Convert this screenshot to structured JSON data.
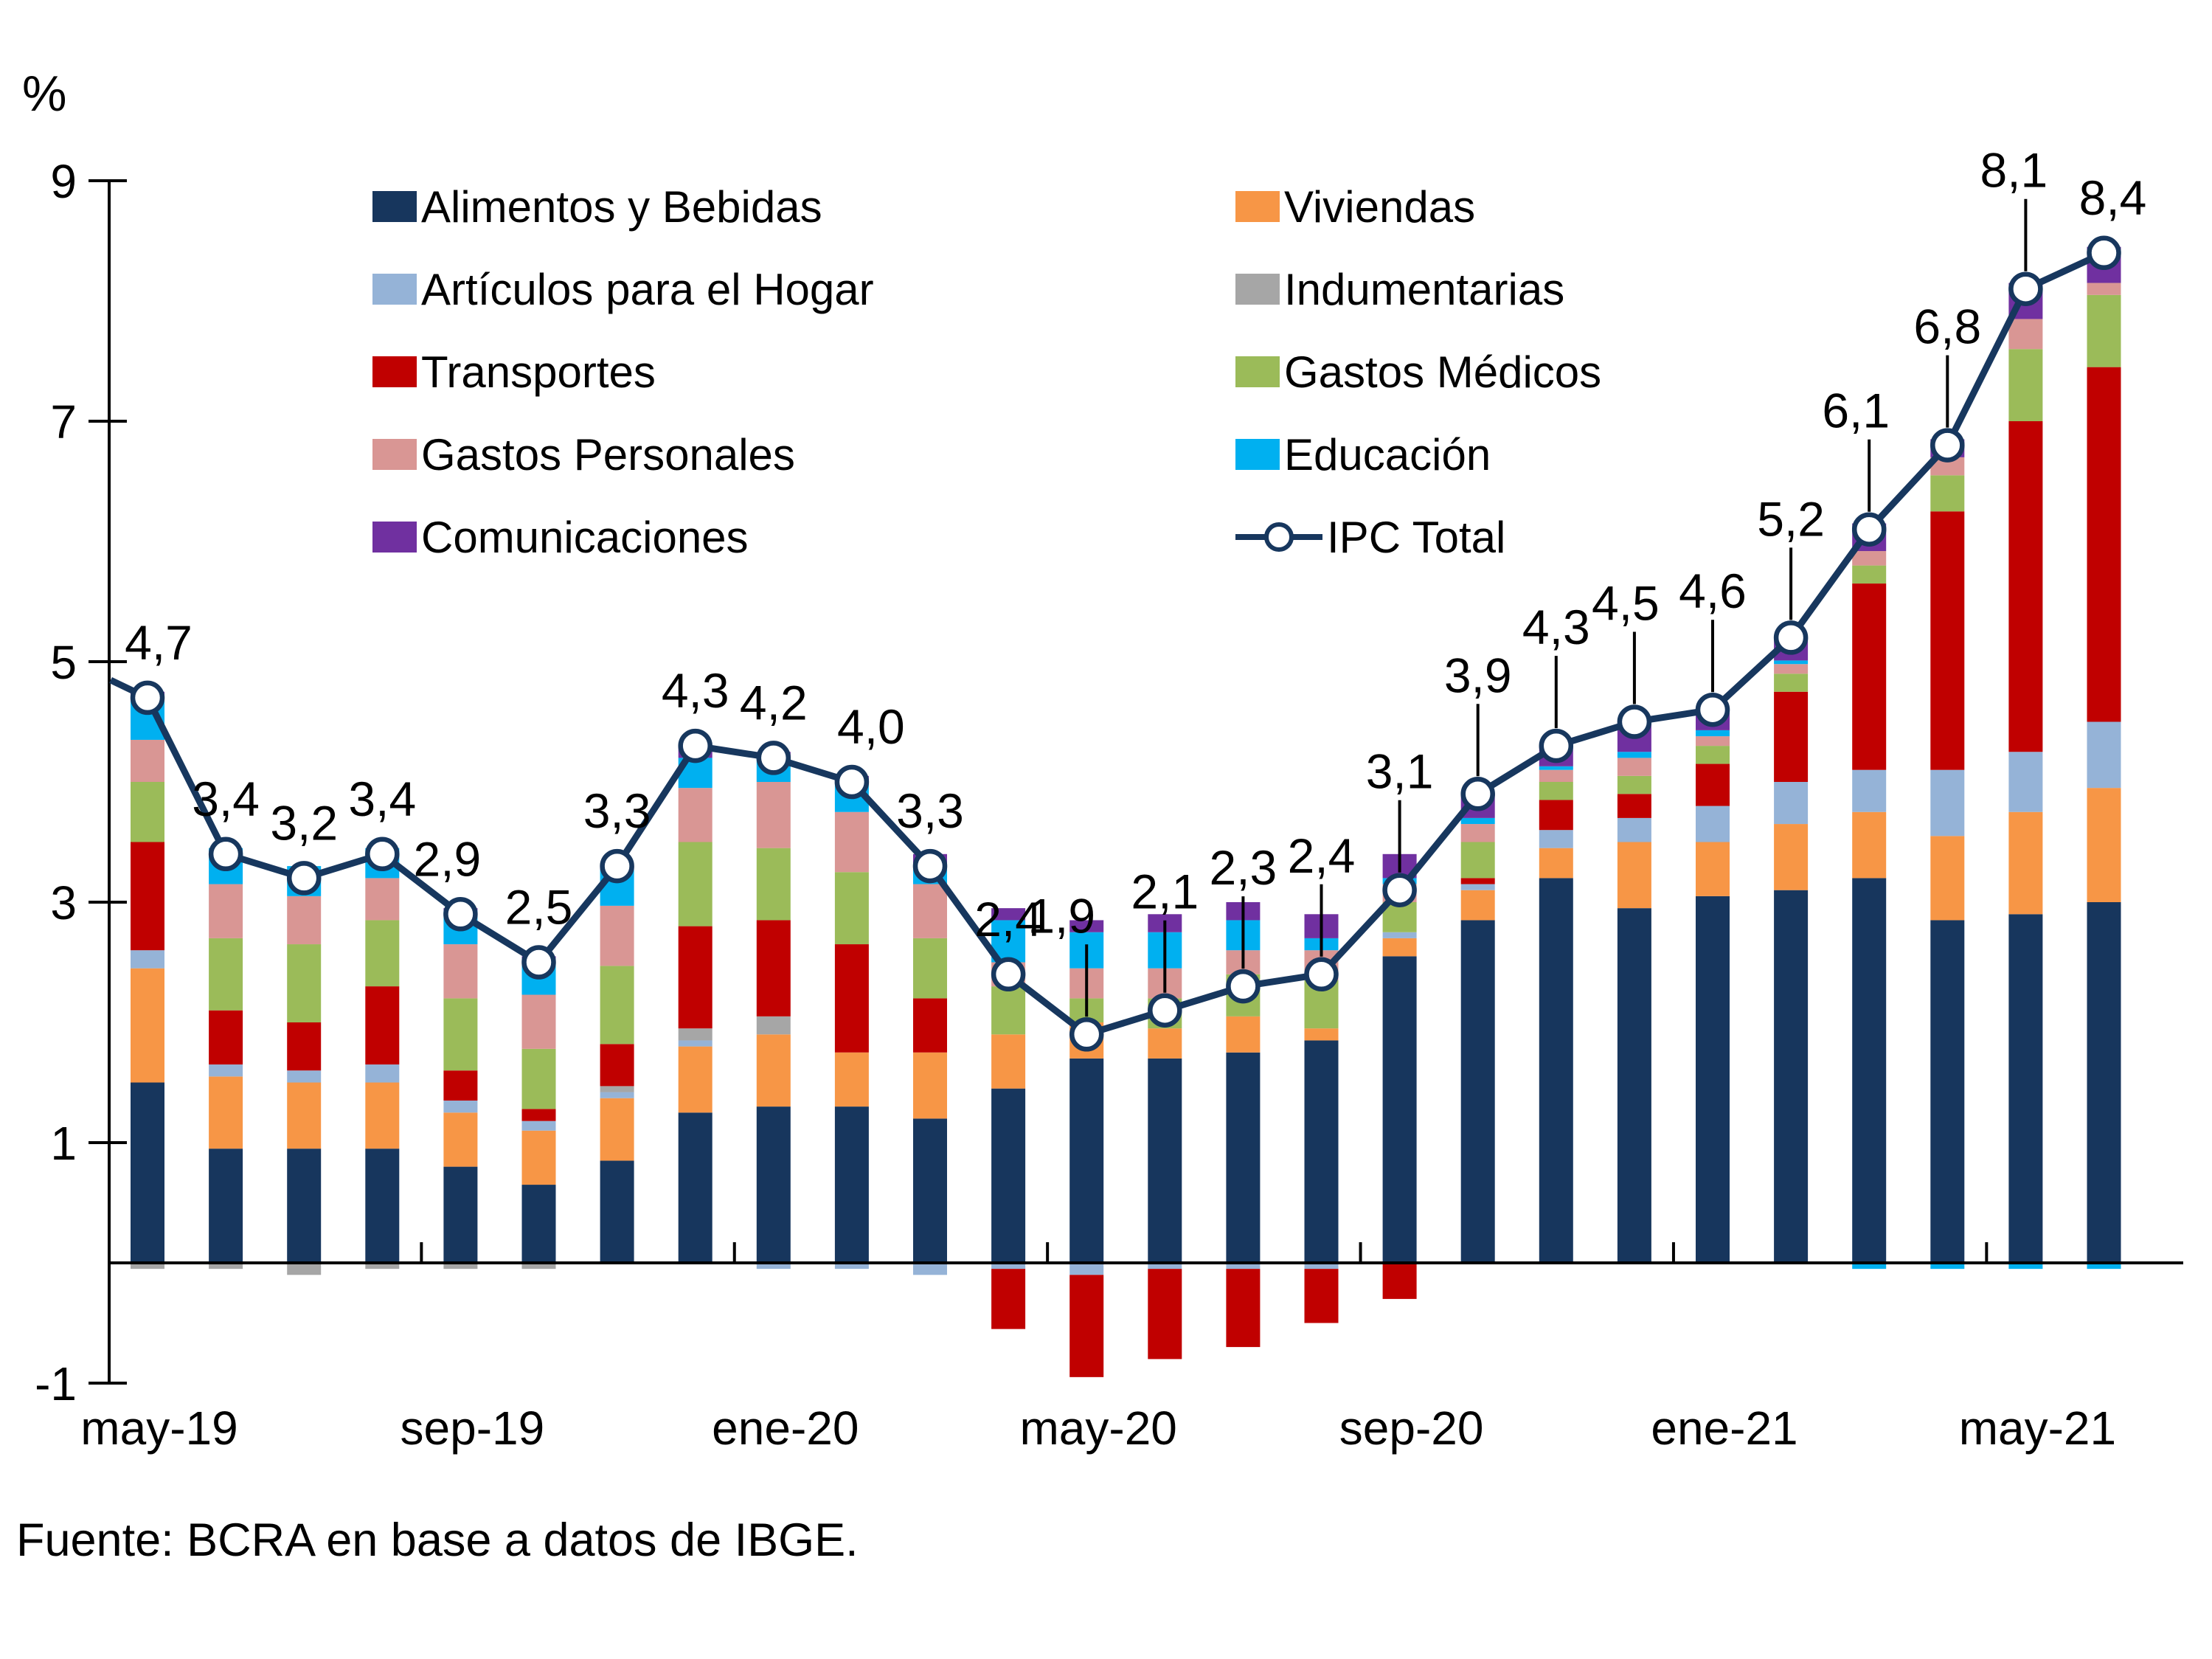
{
  "unit_label": "%",
  "source_note": "Fuente: BCRA en base a datos de IBGE.",
  "accent_colors": {
    "axis": "#000000",
    "line": "#17375e",
    "marker_fill": "#ffffff"
  },
  "legend": {
    "columns": [
      [
        {
          "label": "Alimentos y Bebidas",
          "color": "#17365d"
        },
        {
          "label": "Artículos para el Hogar",
          "color": "#95b3d7"
        },
        {
          "label": "Transportes",
          "color": "#c00000"
        },
        {
          "label": "Gastos Personales",
          "color": "#d99694"
        },
        {
          "label": "Comunicaciones",
          "color": "#7030a0"
        }
      ],
      [
        {
          "label": "Viviendas",
          "color": "#f79646"
        },
        {
          "label": "Indumentarias",
          "color": "#a6a6a6"
        },
        {
          "label": "Gastos Médicos",
          "color": "#9bbb59"
        },
        {
          "label": "Educación",
          "color": "#00b0f0"
        },
        {
          "label": "IPC Total",
          "color": "#17375e",
          "marker": "line-circle"
        }
      ]
    ]
  },
  "chart_data": {
    "type": "bar",
    "subtype": "stacked-bars-with-line-overlay",
    "title": "",
    "ylabel": "%",
    "xlabel": "",
    "ylim": [
      -1,
      9
    ],
    "y_ticks": [
      9,
      7,
      5,
      3,
      1,
      -1
    ],
    "grid": false,
    "legend_position": "top-inside-two-columns",
    "categories": [
      "may-19",
      "jun-19",
      "jul-19",
      "ago-19",
      "sep-19",
      "oct-19",
      "nov-19",
      "dic-19",
      "ene-20",
      "feb-20",
      "mar-20",
      "abr-20",
      "may-20",
      "jun-20",
      "jul-20",
      "ago-20",
      "sep-20",
      "oct-20",
      "nov-20",
      "dic-20",
      "ene-21",
      "feb-21",
      "mar-21",
      "abr-21",
      "may-21",
      "jun-21"
    ],
    "x_tick_labels_visible": [
      "may-19",
      "sep-19",
      "ene-20",
      "may-20",
      "sep-20",
      "ene-21",
      "may-21"
    ],
    "x_tick_label_positions": [
      0,
      4,
      8,
      12,
      16,
      20,
      24
    ],
    "series": [
      {
        "name": "Alimentos y Bebidas",
        "color": "#17365d",
        "values": [
          1.5,
          0.95,
          0.95,
          0.95,
          0.8,
          0.65,
          0.85,
          1.25,
          1.3,
          1.3,
          1.2,
          1.45,
          1.7,
          1.7,
          1.75,
          1.85,
          2.55,
          2.85,
          3.2,
          2.95,
          3.05,
          3.1,
          3.2,
          2.85,
          2.9,
          3.0
        ]
      },
      {
        "name": "Viviendas",
        "color": "#f79646",
        "values": [
          0.95,
          0.6,
          0.55,
          0.55,
          0.45,
          0.45,
          0.52,
          0.55,
          0.6,
          0.45,
          0.55,
          0.45,
          0.3,
          0.25,
          0.3,
          0.1,
          0.15,
          0.25,
          0.25,
          0.55,
          0.45,
          0.55,
          0.55,
          0.7,
          0.85,
          0.95
        ]
      },
      {
        "name": "Artículos para el Hogar",
        "color": "#95b3d7",
        "values": [
          0.15,
          0.1,
          0.1,
          0.15,
          0.1,
          0.08,
          0.05,
          0.05,
          -0.05,
          -0.05,
          -0.1,
          -0.05,
          -0.1,
          -0.05,
          -0.05,
          -0.05,
          0.05,
          0.05,
          0.15,
          0.2,
          0.3,
          0.35,
          0.35,
          0.55,
          0.5,
          0.55
        ]
      },
      {
        "name": "Indumentarias",
        "color": "#a6a6a6",
        "values": [
          -0.05,
          -0.05,
          -0.1,
          -0.05,
          -0.05,
          -0.05,
          0.05,
          0.1,
          0.15,
          0.0,
          0.0,
          0.0,
          0.0,
          0.0,
          0.0,
          0.0,
          0.0,
          0.0,
          0.0,
          0.0,
          0.0,
          0.0,
          0.0,
          0.0,
          0.0,
          0.0
        ]
      },
      {
        "name": "Transportes",
        "color": "#c00000",
        "values": [
          0.9,
          0.45,
          0.4,
          0.65,
          0.25,
          0.1,
          0.35,
          0.85,
          0.8,
          0.9,
          0.45,
          -0.5,
          -0.85,
          -0.75,
          -0.65,
          -0.45,
          -0.3,
          0.05,
          0.25,
          0.2,
          0.35,
          0.75,
          1.55,
          2.15,
          2.75,
          2.95
        ]
      },
      {
        "name": "Gastos Médicos",
        "color": "#9bbb59",
        "values": [
          0.5,
          0.6,
          0.65,
          0.55,
          0.6,
          0.5,
          0.65,
          0.7,
          0.6,
          0.6,
          0.5,
          0.4,
          0.2,
          0.25,
          0.35,
          0.4,
          0.25,
          0.3,
          0.15,
          0.15,
          0.15,
          0.15,
          0.15,
          0.3,
          0.6,
          0.6
        ]
      },
      {
        "name": "Gastos Personales",
        "color": "#d99694",
        "values": [
          0.35,
          0.45,
          0.4,
          0.35,
          0.45,
          0.45,
          0.5,
          0.45,
          0.55,
          0.5,
          0.45,
          0.2,
          0.25,
          0.25,
          0.2,
          0.25,
          0.15,
          0.15,
          0.1,
          0.15,
          0.08,
          0.08,
          0.12,
          0.15,
          0.25,
          0.1
        ]
      },
      {
        "name": "Educación",
        "color": "#00b0f0",
        "values": [
          0.35,
          0.3,
          0.25,
          0.25,
          0.28,
          0.3,
          0.3,
          0.25,
          0.2,
          0.25,
          0.15,
          0.35,
          0.3,
          0.3,
          0.25,
          0.1,
          0.05,
          0.05,
          0.03,
          0.05,
          0.05,
          0.03,
          -0.05,
          -0.05,
          -0.05,
          -0.05
        ]
      },
      {
        "name": "Comunicaciones",
        "color": "#7030a0",
        "values": [
          0.05,
          0.0,
          0.0,
          0.0,
          0.02,
          0.02,
          0.03,
          0.1,
          0.05,
          0.05,
          0.1,
          0.1,
          0.1,
          0.15,
          0.15,
          0.2,
          0.2,
          0.2,
          0.17,
          0.25,
          0.17,
          0.19,
          0.23,
          0.15,
          0.3,
          0.3
        ]
      }
    ],
    "line": {
      "name": "IPC Total",
      "color": "#17375e",
      "marker": "open-circle",
      "values": [
        4.7,
        3.4,
        3.2,
        3.4,
        2.9,
        2.5,
        3.3,
        4.3,
        4.2,
        4.0,
        3.3,
        2.4,
        1.9,
        2.1,
        2.3,
        2.4,
        3.1,
        3.9,
        4.3,
        4.5,
        4.6,
        5.2,
        6.1,
        6.8,
        8.1,
        8.4
      ],
      "labels": [
        "4,7",
        "3,4",
        "3,2",
        "3,4",
        "2,9",
        "2,5",
        "3,3",
        "4,3",
        "4,2",
        "4,0",
        "3,3",
        "2,4",
        "1,9",
        "2,1",
        "2,3",
        "2,4",
        "3,1",
        "3,9",
        "4,3",
        "4,5",
        "4,6",
        "5,2",
        "6,1",
        "6,8",
        "8,1",
        "8,4"
      ]
    }
  }
}
